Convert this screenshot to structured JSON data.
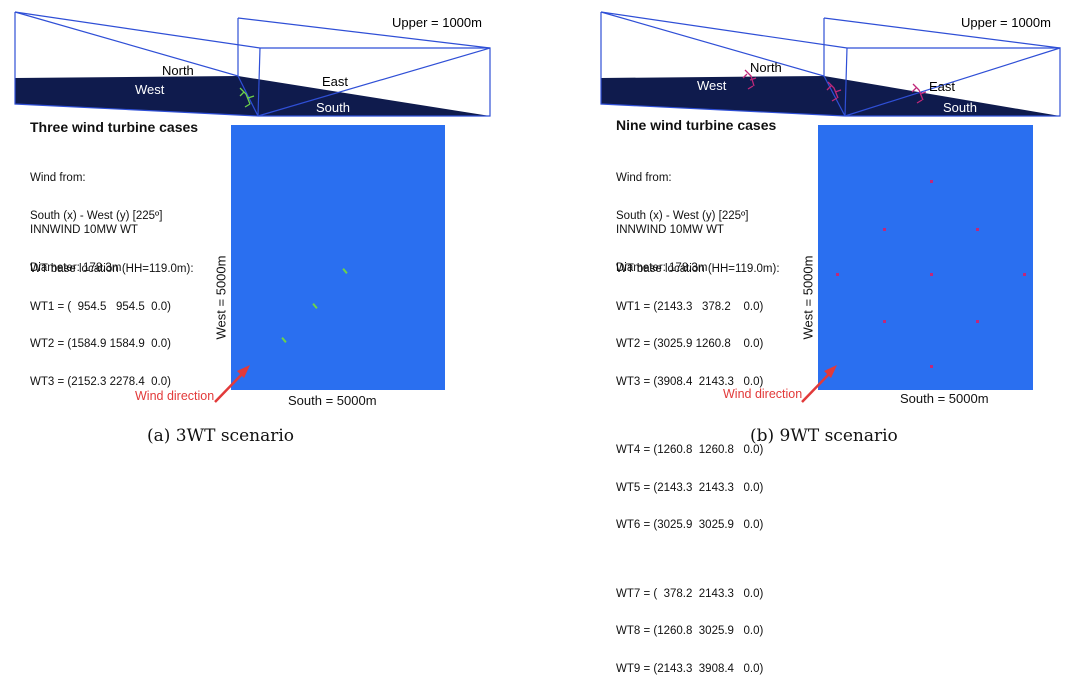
{
  "panels": [
    {
      "box": {
        "upper": "Upper = 1000m",
        "north": "North",
        "east": "East",
        "west": "West",
        "south": "South"
      },
      "title": "Three wind turbine cases",
      "wind_from": [
        "Wind from:",
        "South (x) - West (y) [225º]"
      ],
      "turbine": [
        "INNWIND 10MW WT",
        "Diameter: 178.3m"
      ],
      "location_header": "WT base location (HH=119.0m):",
      "location_groups": [
        [
          "WT1 = (  954.5   954.5  0.0)",
          "WT2 = (1584.9 1584.9  0.0)",
          "WT3 = (2152.3 2278.4  0.0)"
        ]
      ],
      "west_label": "West = 5000m",
      "south_label": "South = 5000m",
      "wind_label": "Wind direction",
      "caption": "(a) 3WT scenario",
      "turbine_color": "#6cd24a"
    },
    {
      "box": {
        "upper": "Upper = 1000m",
        "north": "North",
        "east": "East",
        "west": "West",
        "south": "South"
      },
      "title": "Nine wind turbine cases",
      "wind_from": [
        "Wind from:",
        "South (x) - West (y) [225º]"
      ],
      "turbine": [
        "INNWIND 10MW WT",
        "Diameter: 178.3m"
      ],
      "location_header": "WT base location (HH=119.0m):",
      "location_groups": [
        [
          "WT1 = (2143.3   378.2    0.0)",
          "WT2 = (3025.9 1260.8    0.0)",
          "WT3 = (3908.4  2143.3   0.0)"
        ],
        [
          "WT4 = (1260.8  1260.8   0.0)",
          "WT5 = (2143.3  2143.3   0.0)",
          "WT6 = (3025.9  3025.9   0.0)"
        ],
        [
          "WT7 = (  378.2  2143.3   0.0)",
          "WT8 = (1260.8  3025.9   0.0)",
          "WT9 = (2143.3  3908.4   0.0)"
        ]
      ],
      "west_label": "West = 5000m",
      "south_label": "South = 5000m",
      "wind_label": "Wind direction",
      "caption": "(b) 9WT scenario",
      "turbine_color": "#c0287a"
    }
  ],
  "colors": {
    "box_edge": "#2f4fd6",
    "floor": "#0f1b4d",
    "domain": "#2a6ff0",
    "arrow": "#e23a3a"
  }
}
